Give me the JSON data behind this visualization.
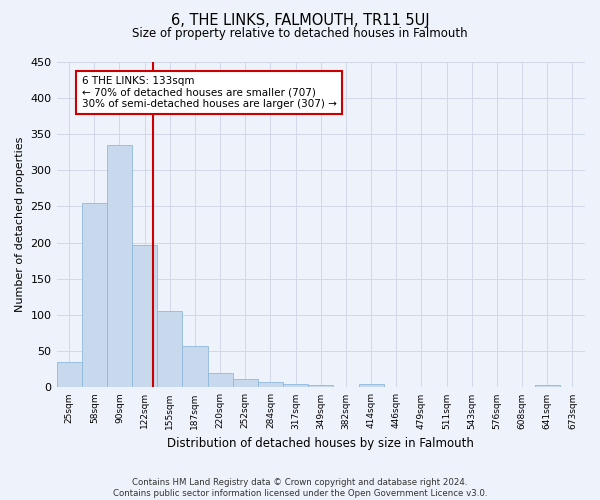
{
  "title": "6, THE LINKS, FALMOUTH, TR11 5UJ",
  "subtitle": "Size of property relative to detached houses in Falmouth",
  "xlabel": "Distribution of detached houses by size in Falmouth",
  "ylabel": "Number of detached properties",
  "categories": [
    "25sqm",
    "58sqm",
    "90sqm",
    "122sqm",
    "155sqm",
    "187sqm",
    "220sqm",
    "252sqm",
    "284sqm",
    "317sqm",
    "349sqm",
    "382sqm",
    "414sqm",
    "446sqm",
    "479sqm",
    "511sqm",
    "543sqm",
    "576sqm",
    "608sqm",
    "641sqm",
    "673sqm"
  ],
  "values": [
    35,
    255,
    335,
    197,
    105,
    57,
    20,
    11,
    7,
    5,
    4,
    0,
    5,
    0,
    0,
    0,
    0,
    0,
    0,
    4,
    0
  ],
  "bar_color": "#c8d9ee",
  "bar_edge_color": "#8fb8db",
  "vline_color": "#cc0000",
  "vline_position": 3.33,
  "annotation_text": "6 THE LINKS: 133sqm\n← 70% of detached houses are smaller (707)\n30% of semi-detached houses are larger (307) →",
  "annotation_box_facecolor": "#ffffff",
  "annotation_box_edgecolor": "#cc0000",
  "ylim": [
    0,
    450
  ],
  "yticks": [
    0,
    50,
    100,
    150,
    200,
    250,
    300,
    350,
    400,
    450
  ],
  "grid_color": "#d0d8ea",
  "footer_line1": "Contains HM Land Registry data © Crown copyright and database right 2024.",
  "footer_line2": "Contains public sector information licensed under the Open Government Licence v3.0.",
  "bg_color": "#eef2fa"
}
